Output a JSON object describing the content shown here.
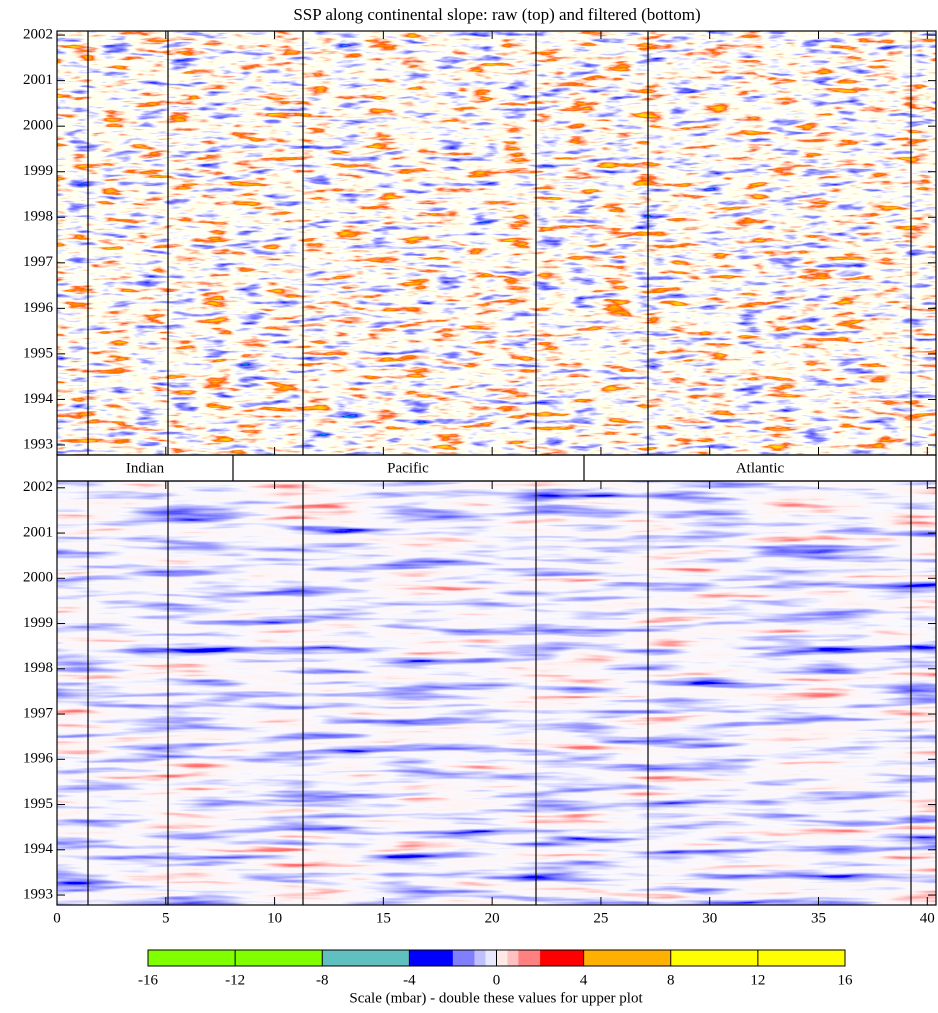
{
  "chart_data": {
    "type": "heatmap",
    "title": "SSP along continental slope: raw (top) and filtered (bottom)",
    "regions": [
      "Indian",
      "Pacific",
      "Atlantic"
    ],
    "xlim": [
      0,
      40.4
    ],
    "xticks": [
      0,
      5,
      10,
      15,
      20,
      25,
      30,
      35,
      40
    ],
    "yticks": [
      1993,
      1994,
      1995,
      1996,
      1997,
      1998,
      1999,
      2000,
      2001,
      2002
    ],
    "panels": [
      {
        "ylim": [
          1992.78,
          2002.09
        ]
      },
      {
        "ylim": [
          1992.78,
          2002.15
        ]
      }
    ],
    "colorbar": {
      "label": "Scale (mbar) - double these values for upper plot",
      "ticks": [
        -16,
        -12,
        -8,
        -4,
        0,
        4,
        8,
        12,
        16
      ],
      "boundaries": [
        -16,
        -12,
        -8,
        -4,
        -2,
        -1,
        -0.5,
        0,
        0.5,
        1,
        2,
        4,
        8,
        12,
        16
      ],
      "colors": [
        "#80ff00",
        "#80ff00",
        "#60c0c0",
        "#0000ff",
        "#8080ff",
        "#c0c0ff",
        "#e8e8ff",
        "#ffe8e8",
        "#ffc0c0",
        "#ff8080",
        "#ff0000",
        "#ffb000",
        "#ffff00",
        "#ffff00"
      ]
    }
  }
}
